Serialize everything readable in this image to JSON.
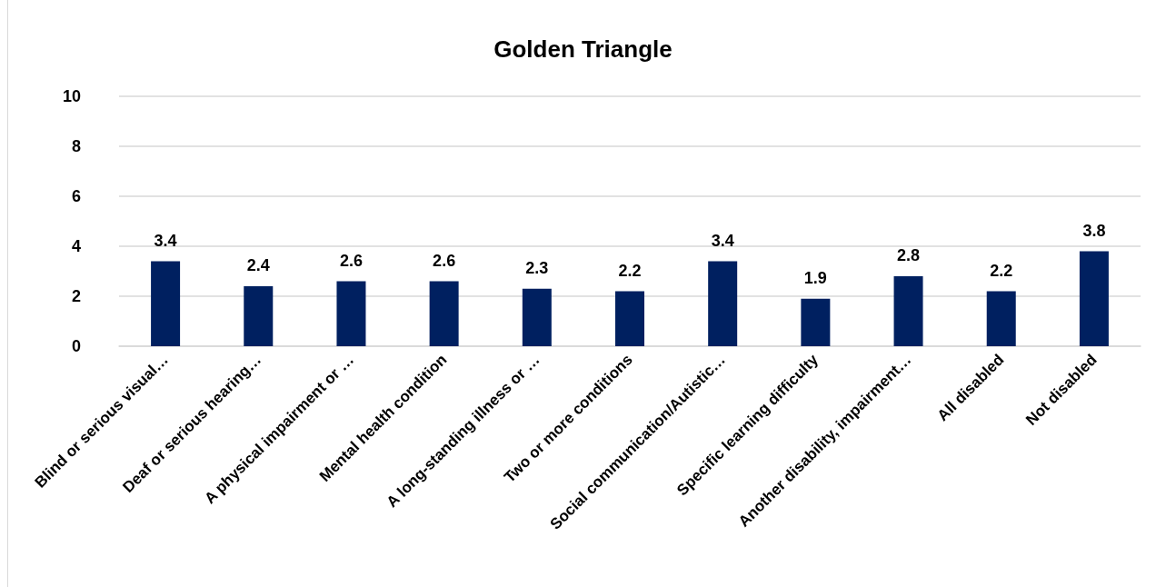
{
  "chart_data": {
    "type": "bar",
    "title": "Golden Triangle",
    "categories": [
      "Blind or serious visual…",
      "Deaf or serious hearing…",
      "A physical impairment or …",
      "Mental health condition",
      "A long-standing illness or …",
      "Two or more conditions",
      "Social communication/Autistic…",
      "Specific learning difficulty",
      "Another disability, impairment…",
      "All disabled",
      "Not disabled"
    ],
    "values": [
      3.4,
      2.4,
      2.6,
      2.6,
      2.3,
      2.2,
      3.4,
      1.9,
      2.8,
      2.2,
      3.8
    ],
    "color": "#002060",
    "ylim": [
      0,
      10
    ],
    "yticks": [
      0,
      2,
      4,
      6,
      8,
      10
    ],
    "grid": "y",
    "data_labels": true
  }
}
